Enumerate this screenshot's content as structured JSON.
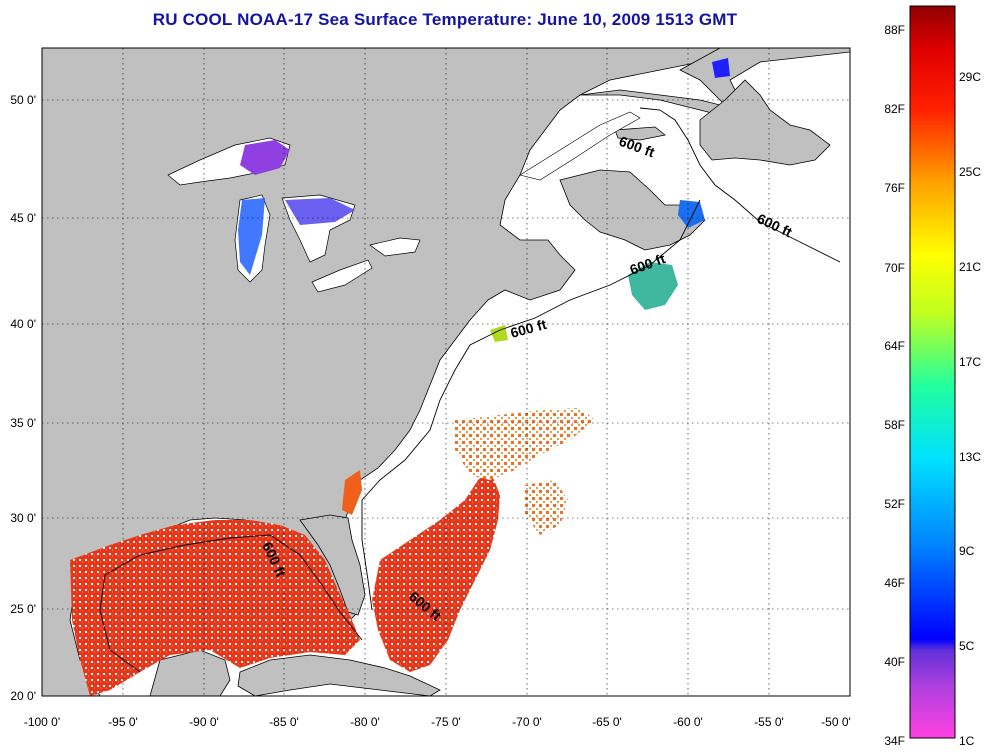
{
  "title": "RU COOL  NOAA-17  Sea Surface Temperature:  June 10, 2009 1513 GMT",
  "lon_labels": [
    "-100 0'",
    "-95 0'",
    "-90 0'",
    "-85 0'",
    "-80 0'",
    "-75 0'",
    "-70 0'",
    "-65 0'",
    "-60 0'",
    "-55 0'",
    "-50 0'"
  ],
  "lat_labels": [
    "50 0'",
    "45 0'",
    "40 0'",
    "35 0'",
    "30 0'",
    "25 0'",
    "20 0'"
  ],
  "contour_labels": [
    "600 ft",
    "600 ft",
    "600 ft",
    "600 ft",
    "600 ft",
    "600 ft"
  ],
  "colorbar": {
    "f_labels": [
      "88F",
      "82F",
      "76F",
      "70F",
      "64F",
      "58F",
      "52F",
      "46F",
      "40F",
      "34F"
    ],
    "c_labels": [
      "29C",
      "25C",
      "21C",
      "17C",
      "13C",
      "9C",
      "5C",
      "1C"
    ]
  },
  "colors": {
    "land": "#c0c0c0",
    "ocean": "#ffffff",
    "title": "#1414a0",
    "warm_water": "#ee3a1a"
  }
}
